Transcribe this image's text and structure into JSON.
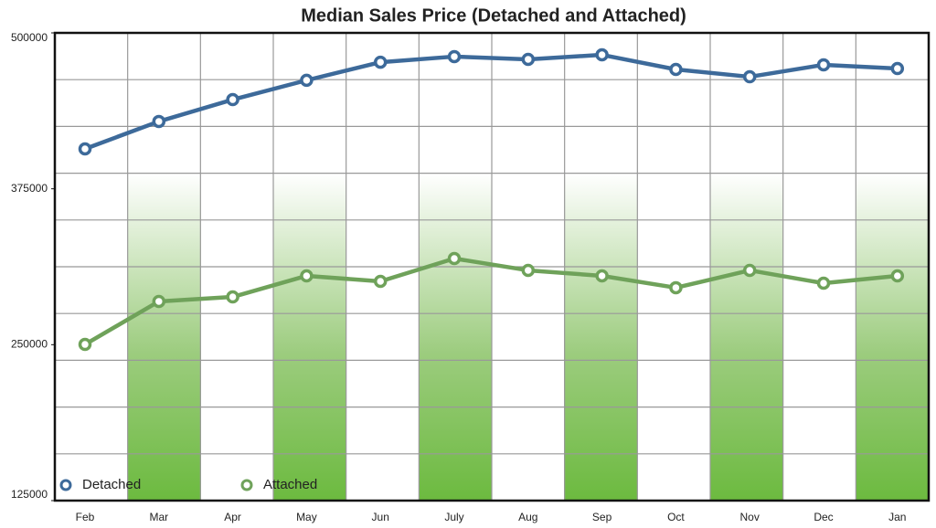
{
  "chart_data": {
    "type": "line",
    "title": "Median Sales Price (Detached and Attached)",
    "categories": [
      "Feb",
      "Mar",
      "Apr",
      "May",
      "Jun",
      "July",
      "Aug",
      "Sep",
      "Oct",
      "Nov",
      "Dec",
      "Jan"
    ],
    "series": [
      {
        "name": "Detached",
        "color": "#3d6a9a",
        "values": [
          407000,
          429000,
          446500,
          462000,
          476500,
          481000,
          478800,
          482400,
          470700,
          464800,
          474400,
          471400
        ]
      },
      {
        "name": "Attached",
        "color": "#6fa25a",
        "values": [
          250200,
          284700,
          288300,
          305200,
          300800,
          319100,
          309600,
          305200,
          295700,
          309600,
          299300,
          305200
        ]
      }
    ],
    "ylim": [
      125000,
      500000
    ],
    "yticks": [
      125000,
      250000,
      375000,
      500000
    ],
    "grid": true
  }
}
